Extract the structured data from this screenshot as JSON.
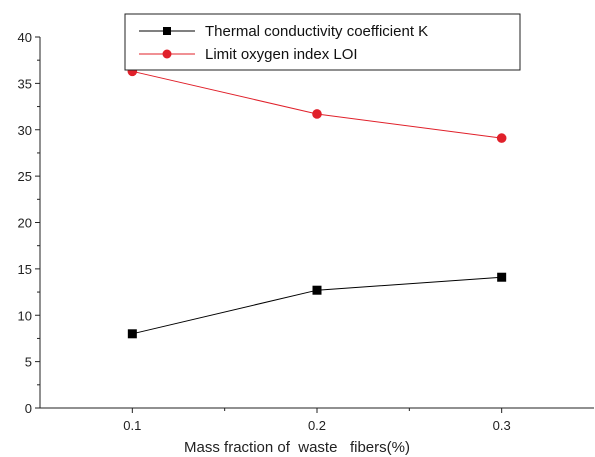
{
  "chart_data": {
    "type": "line",
    "x": [
      0.1,
      0.2,
      0.3
    ],
    "xticks": [
      "0.1",
      "0.2",
      "0.3"
    ],
    "xlim": [
      0.05,
      0.35
    ],
    "yticks": [
      "0",
      "5",
      "10",
      "15",
      "20",
      "25",
      "30",
      "35",
      "40"
    ],
    "ylim": [
      0,
      40
    ],
    "xlabel": "Mass fraction of  waste   fibers(%)",
    "ylabel": "",
    "title": "",
    "legend_position": "top-right",
    "grid": false,
    "series": [
      {
        "name": "Thermal conductivity coefficient K",
        "values": [
          8.0,
          12.7,
          14.1
        ],
        "color": "#000000",
        "marker": "square"
      },
      {
        "name": "Limit oxygen index LOI",
        "values": [
          36.3,
          31.7,
          29.1
        ],
        "color": "#e0202a",
        "marker": "circle"
      }
    ]
  }
}
